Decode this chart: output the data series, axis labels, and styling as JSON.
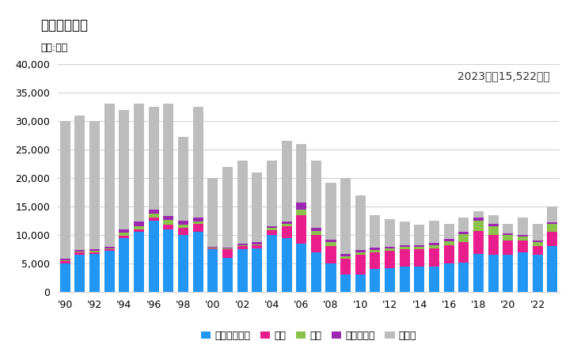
{
  "title": "輸出量の推移",
  "unit_label": "単位:トン",
  "annotation": "2023年：15,522トン",
  "years": [
    1990,
    1991,
    1992,
    1993,
    1994,
    1995,
    1996,
    1997,
    1998,
    1999,
    2000,
    2001,
    2002,
    2003,
    2004,
    2005,
    2006,
    2007,
    2008,
    2009,
    2010,
    2011,
    2012,
    2013,
    2014,
    2015,
    2016,
    2017,
    2018,
    2019,
    2020,
    2021,
    2022,
    2023
  ],
  "indonesia": [
    5000,
    6500,
    6700,
    7200,
    9500,
    10500,
    12500,
    11000,
    10000,
    10500,
    7500,
    6000,
    7500,
    7700,
    10000,
    9500,
    8500,
    7000,
    5000,
    3100,
    3000,
    4000,
    4200,
    4500,
    4500,
    4500,
    5000,
    5200,
    6700,
    6500,
    6500,
    7000,
    6500,
    8000
  ],
  "usa": [
    400,
    400,
    300,
    300,
    400,
    500,
    600,
    800,
    1200,
    1500,
    200,
    1500,
    500,
    500,
    900,
    2000,
    5000,
    3000,
    3000,
    2800,
    3500,
    3000,
    3000,
    3000,
    3000,
    3200,
    3200,
    3500,
    4000,
    3500,
    2500,
    2000,
    1500,
    2500
  ],
  "thailand": [
    150,
    200,
    200,
    200,
    500,
    500,
    700,
    800,
    600,
    400,
    100,
    200,
    200,
    200,
    400,
    500,
    1000,
    700,
    700,
    400,
    500,
    400,
    400,
    400,
    400,
    500,
    700,
    1500,
    1800,
    1500,
    1000,
    700,
    700,
    1500
  ],
  "malaysia": [
    250,
    300,
    250,
    250,
    600,
    900,
    700,
    800,
    700,
    600,
    150,
    100,
    300,
    300,
    250,
    350,
    1200,
    600,
    500,
    350,
    400,
    400,
    350,
    350,
    350,
    350,
    350,
    400,
    500,
    400,
    250,
    350,
    350,
    250
  ],
  "other": [
    24200,
    23600,
    22550,
    25050,
    21000,
    20600,
    18000,
    19600,
    14700,
    19500,
    12050,
    14200,
    14500,
    12300,
    11450,
    14150,
    10300,
    11700,
    10000,
    13350,
    9600,
    5700,
    4850,
    4050,
    3550,
    3950,
    2750,
    2400,
    1200,
    1600,
    1750,
    2950,
    2950,
    2772
  ],
  "colors": {
    "indonesia": "#2196F3",
    "usa": "#E91E8C",
    "thailand": "#8BC34A",
    "malaysia": "#9C27B0",
    "other": "#BDBDBD"
  },
  "legend_labels": {
    "indonesia": "インドネシア",
    "usa": "米国",
    "thailand": "タイ",
    "malaysia": "マレーシア",
    "other": "その他"
  },
  "ylim": [
    0,
    40000
  ],
  "yticks": [
    0,
    5000,
    10000,
    15000,
    20000,
    25000,
    30000,
    35000,
    40000
  ]
}
